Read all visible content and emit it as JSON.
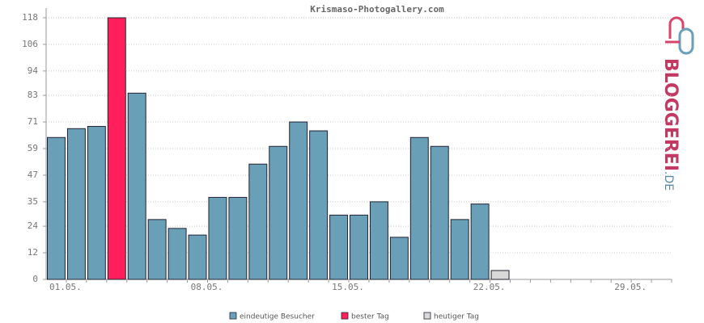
{
  "chart_data": {
    "type": "bar",
    "title": "Krismaso-Photogallery.com",
    "categories": [
      "01.05.",
      null,
      null,
      null,
      null,
      null,
      null,
      "08.05.",
      null,
      null,
      null,
      null,
      null,
      null,
      "15.05.",
      null,
      null,
      null,
      null,
      null,
      null,
      "22.05.",
      null,
      null,
      null,
      null,
      null,
      null,
      "29.05.",
      null,
      null
    ],
    "series": [
      {
        "name": "eindeutige Besucher",
        "color": "#6a9fb8",
        "values": [
          64,
          68,
          69,
          null,
          84,
          27,
          23,
          20,
          37,
          37,
          52,
          60,
          71,
          67,
          29,
          29,
          35,
          19,
          64,
          60,
          27,
          34,
          null,
          null,
          null,
          null,
          null,
          null,
          null,
          null,
          null
        ]
      },
      {
        "name": "bester Tag",
        "color": "#ff1f5a",
        "values": [
          null,
          null,
          null,
          118,
          null,
          null,
          null,
          null,
          null,
          null,
          null,
          null,
          null,
          null,
          null,
          null,
          null,
          null,
          null,
          null,
          null,
          null,
          null,
          null,
          null,
          null,
          null,
          null,
          null,
          null,
          null
        ]
      },
      {
        "name": "heutiger Tag",
        "color": "#d8d8d8",
        "values": [
          null,
          null,
          null,
          null,
          null,
          null,
          null,
          null,
          null,
          null,
          null,
          null,
          null,
          null,
          null,
          null,
          null,
          null,
          null,
          null,
          null,
          null,
          4,
          null,
          null,
          null,
          null,
          null,
          null,
          null,
          null
        ]
      }
    ],
    "ylim": [
      0,
      118
    ],
    "yticks": [
      0,
      12,
      24,
      35,
      47,
      59,
      71,
      83,
      94,
      106,
      118
    ],
    "grid": true
  },
  "logo": {
    "main": "BLOGGEREI",
    "suffix": ".DE"
  }
}
